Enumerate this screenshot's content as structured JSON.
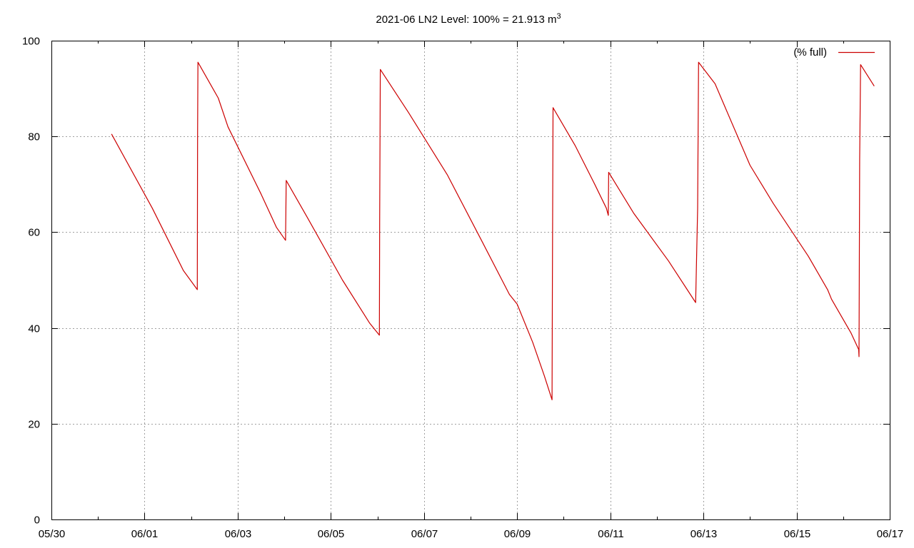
{
  "chart_data": {
    "type": "line",
    "title": "2021-06 LN2 Level: 100% = 21.913 m",
    "title_superscript": "3",
    "xlabel": "",
    "ylabel": "",
    "x_unit": "date (MM/DD, 2021)",
    "xlim": [
      "05/30",
      "06/17"
    ],
    "ylim": [
      0,
      100
    ],
    "x_ticks": [
      "05/30",
      "06/01",
      "06/03",
      "06/05",
      "06/07",
      "06/09",
      "06/11",
      "06/13",
      "06/15",
      "06/17"
    ],
    "y_ticks": [
      "0",
      "20",
      "40",
      "60",
      "80",
      "100"
    ],
    "grid": true,
    "legend_position": "top-right",
    "series": [
      {
        "name": "(% full)",
        "color": "#cc0000",
        "points": [
          [
            "05/31 07:00",
            80.5
          ],
          [
            "06/01 04:00",
            65
          ],
          [
            "06/01 20:00",
            52
          ],
          [
            "06/02 03:10",
            48
          ],
          [
            "06/02 03:20",
            80
          ],
          [
            "06/02 03:30",
            95.5
          ],
          [
            "06/02 14:00",
            88
          ],
          [
            "06/02 19:00",
            82
          ],
          [
            "06/03 12:00",
            68
          ],
          [
            "06/03 20:00",
            61
          ],
          [
            "06/04 00:40",
            58.3
          ],
          [
            "06/04 00:50",
            65
          ],
          [
            "06/04 01:00",
            70.8
          ],
          [
            "06/04 12:00",
            63
          ],
          [
            "06/05 06:00",
            50
          ],
          [
            "06/05 20:00",
            41
          ],
          [
            "06/06 01:00",
            38.5
          ],
          [
            "06/06 01:10",
            62
          ],
          [
            "06/06 01:30",
            94
          ],
          [
            "06/06 16:00",
            85
          ],
          [
            "06/07 12:00",
            72
          ],
          [
            "06/08 06:00",
            58
          ],
          [
            "06/08 20:00",
            47
          ],
          [
            "06/09 00:00",
            45
          ],
          [
            "06/09 08:00",
            37
          ],
          [
            "06/09 14:00",
            30
          ],
          [
            "06/09 18:00",
            25
          ],
          [
            "06/09 18:10",
            50
          ],
          [
            "06/09 18:30",
            86
          ],
          [
            "06/10 06:00",
            78
          ],
          [
            "06/10 16:00",
            70
          ],
          [
            "06/10 22:00",
            65
          ],
          [
            "06/10 23:00",
            63.5
          ],
          [
            "06/10 23:10",
            72.5
          ],
          [
            "06/11 12:00",
            64
          ],
          [
            "06/12 06:00",
            54
          ],
          [
            "06/12 20:00",
            45.3
          ],
          [
            "06/12 21:00",
            65
          ],
          [
            "06/12 21:30",
            95.5
          ],
          [
            "06/13 06:00",
            91
          ],
          [
            "06/14 00:00",
            74
          ],
          [
            "06/14 12:00",
            66
          ],
          [
            "06/15 06:00",
            55
          ],
          [
            "06/15 16:00",
            48
          ],
          [
            "06/15 18:00",
            46
          ],
          [
            "06/16 04:00",
            39
          ],
          [
            "06/16 08:00",
            35.5
          ],
          [
            "06/16 08:10",
            34
          ],
          [
            "06/16 08:30",
            75
          ],
          [
            "06/16 09:00",
            95
          ],
          [
            "06/16 16:00",
            90.5
          ]
        ]
      }
    ]
  }
}
